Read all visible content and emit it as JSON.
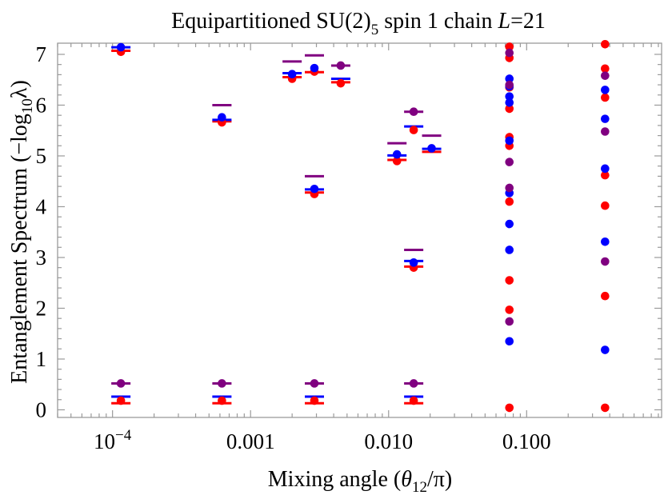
{
  "chart_data": {
    "type": "scatter",
    "title": "Equipartitioned SU(2)₅ spin 1 chain L=21",
    "title_parts": {
      "pre": "Equipartitioned SU(2)",
      "sub": "5",
      "mid": " spin 1 chain ",
      "var": "L",
      "post": "=21"
    },
    "xlabel": "Mixing angle (θ₁₂/π)",
    "xlabel_parts": {
      "pre": "Mixing angle (",
      "sym": "θ",
      "sub": "12",
      "post": "/π)"
    },
    "ylabel": "Entanglement  Spectrum (−log₁₀λ)",
    "ylabel_parts": {
      "pre": "Entanglement  Spectrum (−log",
      "sub": "10",
      "post": "λ)"
    },
    "x_scale": "log",
    "xlim": [
      4e-05,
      0.95
    ],
    "ylim": [
      -0.15,
      7.22
    ],
    "grid": false,
    "x_ticks": [
      {
        "value": 0.0001,
        "base": "10",
        "exp": "−4"
      },
      {
        "value": 0.001,
        "label": "0.001"
      },
      {
        "value": 0.01,
        "label": "0.010"
      },
      {
        "value": 0.1,
        "label": "0.100"
      }
    ],
    "y_ticks": [
      0,
      1,
      2,
      3,
      4,
      5,
      6,
      7
    ],
    "colors": {
      "red": "#ff0000",
      "blue": "#0000ff",
      "purple": "#800080"
    },
    "series": [
      {
        "color": "red",
        "marker": "dot",
        "points": [
          [
            0.000115,
            0.18
          ],
          [
            0.000115,
            7.05
          ],
          [
            0.00062,
            0.18
          ],
          [
            0.00062,
            5.66
          ],
          [
            0.002,
            6.52
          ],
          [
            0.0029,
            0.18
          ],
          [
            0.0029,
            4.25
          ],
          [
            0.0029,
            6.66
          ],
          [
            0.0045,
            6.43
          ],
          [
            0.0115,
            4.9
          ],
          [
            0.0152,
            0.18
          ],
          [
            0.0152,
            2.8
          ],
          [
            0.0152,
            5.51
          ],
          [
            0.075,
            0.04
          ],
          [
            0.075,
            1.97
          ],
          [
            0.075,
            2.55
          ],
          [
            0.075,
            4.1
          ],
          [
            0.075,
            5.2
          ],
          [
            0.075,
            5.37
          ],
          [
            0.075,
            5.93
          ],
          [
            0.075,
            6.35
          ],
          [
            0.075,
            6.93
          ],
          [
            0.075,
            7.15
          ],
          [
            0.37,
            0.04
          ],
          [
            0.37,
            2.24
          ],
          [
            0.37,
            4.02
          ],
          [
            0.37,
            4.62
          ],
          [
            0.37,
            6.15
          ],
          [
            0.37,
            6.72
          ],
          [
            0.37,
            7.2
          ]
        ]
      },
      {
        "color": "blue",
        "marker": "dot",
        "points": [
          [
            0.000115,
            7.14
          ],
          [
            0.00062,
            5.76
          ],
          [
            0.002,
            6.61
          ],
          [
            0.0029,
            4.35
          ],
          [
            0.0029,
            6.73
          ],
          [
            0.0115,
            5.03
          ],
          [
            0.0152,
            2.9
          ],
          [
            0.0205,
            5.15
          ],
          [
            0.075,
            1.35
          ],
          [
            0.075,
            3.15
          ],
          [
            0.075,
            3.66
          ],
          [
            0.075,
            4.27
          ],
          [
            0.075,
            5.3
          ],
          [
            0.075,
            6.05
          ],
          [
            0.075,
            6.17
          ],
          [
            0.075,
            6.37
          ],
          [
            0.075,
            6.52
          ],
          [
            0.37,
            1.18
          ],
          [
            0.37,
            3.31
          ],
          [
            0.37,
            4.75
          ],
          [
            0.37,
            5.73
          ],
          [
            0.37,
            6.3
          ]
        ]
      },
      {
        "color": "purple",
        "marker": "dot",
        "points": [
          [
            0.000115,
            0.52
          ],
          [
            0.00062,
            0.52
          ],
          [
            0.0029,
            0.52
          ],
          [
            0.0045,
            6.78
          ],
          [
            0.0152,
            0.52
          ],
          [
            0.0152,
            5.87
          ],
          [
            0.075,
            1.74
          ],
          [
            0.075,
            4.37
          ],
          [
            0.075,
            4.88
          ],
          [
            0.075,
            6.4
          ],
          [
            0.075,
            7.03
          ],
          [
            0.37,
            2.92
          ],
          [
            0.37,
            5.48
          ],
          [
            0.37,
            6.58
          ]
        ]
      },
      {
        "color": "red",
        "marker": "bar",
        "points": [
          [
            0.000115,
            0.13
          ],
          [
            0.000115,
            7.07
          ],
          [
            0.00062,
            0.13
          ],
          [
            0.00062,
            5.68
          ],
          [
            0.002,
            6.55
          ],
          [
            0.0029,
            0.13
          ],
          [
            0.0029,
            4.28
          ],
          [
            0.0029,
            6.65
          ],
          [
            0.0045,
            6.45
          ],
          [
            0.0115,
            4.92
          ],
          [
            0.0152,
            0.13
          ],
          [
            0.0152,
            2.82
          ],
          [
            0.0205,
            5.08
          ]
        ]
      },
      {
        "color": "blue",
        "marker": "bar",
        "points": [
          [
            0.000115,
            0.26
          ],
          [
            0.000115,
            7.14
          ],
          [
            0.00062,
            0.26
          ],
          [
            0.00062,
            5.71
          ],
          [
            0.002,
            6.63
          ],
          [
            0.0029,
            0.26
          ],
          [
            0.0029,
            4.34
          ],
          [
            0.0045,
            6.52
          ],
          [
            0.0115,
            5.01
          ],
          [
            0.0152,
            0.26
          ],
          [
            0.0152,
            2.93
          ],
          [
            0.0152,
            5.58
          ],
          [
            0.0205,
            5.14
          ]
        ]
      },
      {
        "color": "purple",
        "marker": "bar",
        "points": [
          [
            0.000115,
            0.52
          ],
          [
            0.00062,
            0.52
          ],
          [
            0.00062,
            6.0
          ],
          [
            0.002,
            6.86
          ],
          [
            0.0029,
            0.52
          ],
          [
            0.0029,
            4.6
          ],
          [
            0.0029,
            6.98
          ],
          [
            0.0045,
            6.78
          ],
          [
            0.0115,
            5.25
          ],
          [
            0.0152,
            0.52
          ],
          [
            0.0152,
            3.15
          ],
          [
            0.0152,
            5.87
          ],
          [
            0.0205,
            5.4
          ]
        ]
      }
    ]
  }
}
